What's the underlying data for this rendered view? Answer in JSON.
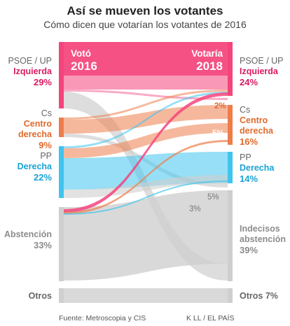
{
  "header": {
    "title": "Así se mueven los votantes",
    "subtitle": "Cómo dicen que votarían los votantes de 2016"
  },
  "columns": {
    "from": {
      "label": "Votó",
      "year": "2016"
    },
    "to": {
      "label": "Votaría",
      "year": "2018"
    }
  },
  "colors": {
    "izquierda": "#f4447c",
    "centro": "#ee7d4c",
    "derecha": "#40c4ee",
    "abstencion": "#cfcfcf",
    "otros": "#cfcfcf",
    "izq_label": "#d81b60",
    "centro_label": "#e06a2c",
    "der_label": "#1aa3d6",
    "abst_label": "#8c8c8c",
    "otros_label": "#666666"
  },
  "left_nodes": [
    {
      "key": "izq",
      "name": "PSOE / UP",
      "bloc": "Izquierda",
      "pct": "29%"
    },
    {
      "key": "cen",
      "name": "Cs",
      "bloc": "Centro derecha",
      "pct": "9%"
    },
    {
      "key": "der",
      "name": "PP",
      "bloc": "Derecha",
      "pct": "22%"
    },
    {
      "key": "abs",
      "name": "",
      "bloc": "Abstención",
      "pct": "33%"
    },
    {
      "key": "otr",
      "name": "",
      "bloc": "Otros",
      "pct": ""
    }
  ],
  "right_nodes": [
    {
      "key": "izq",
      "name": "PSOE / UP",
      "bloc": "Izquierda",
      "pct": "24%"
    },
    {
      "key": "cen",
      "name": "Cs",
      "bloc": "Centro derecha",
      "pct": "16%"
    },
    {
      "key": "der",
      "name": "PP",
      "bloc": "Derecha",
      "pct": "14%"
    },
    {
      "key": "ind",
      "name": "",
      "bloc": "Indecisos abstención",
      "pct": "39%"
    },
    {
      "key": "otr",
      "name": "",
      "bloc": "Otros",
      "pct": "7%"
    }
  ],
  "flow_labels": [
    "2%",
    "5%",
    "5%",
    "3%"
  ],
  "footer": {
    "source": "Fuente: Metroscopia y CIS",
    "credit": "K LL / EL PAÍS"
  }
}
